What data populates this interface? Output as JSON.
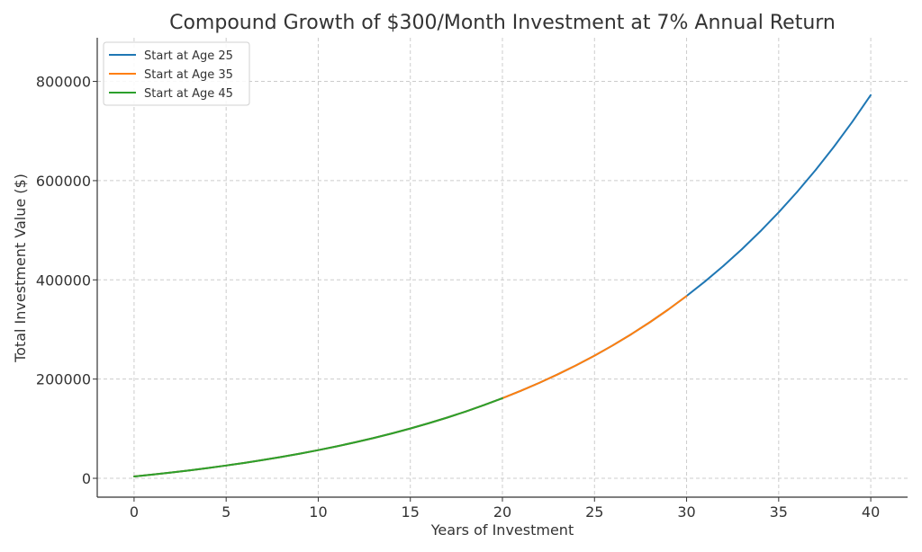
{
  "chart_data": {
    "type": "line",
    "title": "Compound Growth of $300/Month Investment at 7% Annual Return",
    "xlabel": "Years of Investment",
    "ylabel": "Total Investment Value ($)",
    "xlim": [
      -2,
      42
    ],
    "ylim": [
      -38000,
      888000
    ],
    "xticks": [
      0,
      5,
      10,
      15,
      20,
      25,
      30,
      35,
      40
    ],
    "yticks": [
      0,
      200000,
      400000,
      600000,
      800000
    ],
    "grid": true,
    "legend_position": "top-left",
    "series": [
      {
        "name": "Start at Age 25",
        "color": "#1f77b4",
        "x": [
          0,
          1,
          2,
          3,
          4,
          5,
          6,
          7,
          8,
          9,
          10,
          11,
          12,
          13,
          14,
          15,
          16,
          17,
          18,
          19,
          20,
          21,
          22,
          23,
          24,
          25,
          26,
          27,
          28,
          29,
          30,
          31,
          32,
          33,
          34,
          35,
          36,
          37,
          38,
          39,
          40
        ],
        "values": [
          3600,
          7452,
          11574,
          15984,
          20703,
          25752,
          31155,
          36936,
          43121,
          49740,
          56822,
          64400,
          72508,
          81184,
          90467,
          100400,
          111028,
          122400,
          134568,
          147588,
          161519,
          176425,
          192375,
          209441,
          227702,
          247241,
          268148,
          290518,
          314454,
          340066,
          367470,
          396793,
          428168,
          461740,
          497662,
          536098,
          577225,
          621230,
          668316,
          718698,
          772607
        ]
      },
      {
        "name": "Start at Age 35",
        "color": "#ff7f0e",
        "x": [
          0,
          1,
          2,
          3,
          4,
          5,
          6,
          7,
          8,
          9,
          10,
          11,
          12,
          13,
          14,
          15,
          16,
          17,
          18,
          19,
          20,
          21,
          22,
          23,
          24,
          25,
          26,
          27,
          28,
          29,
          30
        ],
        "values": [
          3600,
          7452,
          11574,
          15984,
          20703,
          25752,
          31155,
          36936,
          43121,
          49740,
          56822,
          64400,
          72508,
          81184,
          90467,
          100400,
          111028,
          122400,
          134568,
          147588,
          161519,
          176425,
          192375,
          209441,
          227702,
          247241,
          268148,
          290518,
          314454,
          340066,
          367470
        ]
      },
      {
        "name": "Start at Age 45",
        "color": "#2ca02c",
        "x": [
          0,
          1,
          2,
          3,
          4,
          5,
          6,
          7,
          8,
          9,
          10,
          11,
          12,
          13,
          14,
          15,
          16,
          17,
          18,
          19,
          20
        ],
        "values": [
          3600,
          7452,
          11574,
          15984,
          20703,
          25752,
          31155,
          36936,
          43121,
          49740,
          56822,
          64400,
          72508,
          81184,
          90467,
          100400,
          111028,
          122400,
          134568,
          147588,
          161519
        ]
      }
    ]
  }
}
